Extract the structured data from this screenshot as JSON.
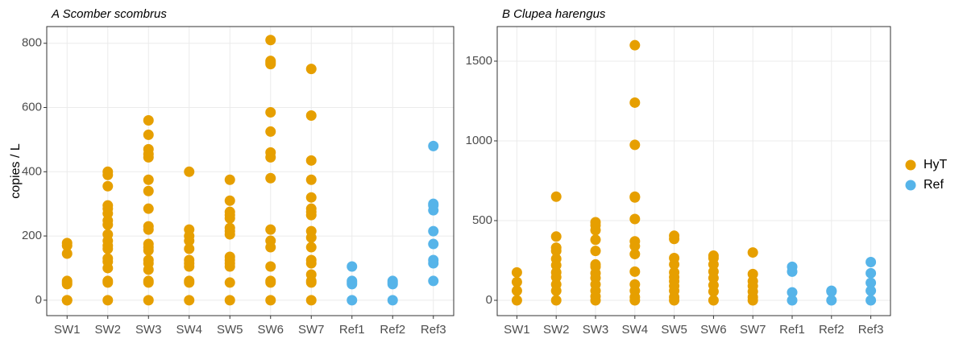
{
  "chart_data": [
    {
      "type": "strip",
      "title": "A Scomber scombrus",
      "ylabel": "copies / L",
      "categories": [
        "SW1",
        "SW2",
        "SW3",
        "SW4",
        "SW5",
        "SW6",
        "SW7",
        "Ref1",
        "Ref2",
        "Ref3"
      ],
      "ylim": [
        -48,
        852
      ],
      "yticks": [
        0,
        200,
        400,
        600,
        800
      ],
      "grid": true,
      "series": [
        {
          "name": "HyT",
          "color": "#E69F00",
          "values": [
            [
              0,
              0,
              50,
              55,
              60,
              145,
              170,
              178
            ],
            [
              400,
              390,
              355,
              295,
              285,
              270,
              248,
              235,
              205,
              185,
              170,
              160,
              130,
              120,
              100,
              60,
              55,
              0
            ],
            [
              560,
              515,
              470,
              455,
              445,
              375,
              340,
              285,
              230,
              220,
              175,
              165,
              155,
              125,
              115,
              95,
              60,
              55,
              0
            ],
            [
              400,
              220,
              200,
              185,
              160,
              125,
              115,
              105,
              60,
              55,
              0
            ],
            [
              375,
              310,
              275,
              265,
              255,
              225,
              215,
              205,
              135,
              125,
              115,
              105,
              55,
              0
            ],
            [
              810,
              745,
              740,
              735,
              585,
              525,
              460,
              445,
              380,
              220,
              185,
              165,
              105,
              60,
              55,
              0
            ],
            [
              720,
              575,
              435,
              375,
              320,
              285,
              275,
              265,
              215,
              195,
              165,
              125,
              115,
              80,
              60,
              55,
              0
            ],
            [],
            [],
            []
          ]
        },
        {
          "name": "Ref",
          "color": "#56B4E9",
          "values": [
            [],
            [],
            [],
            [],
            [],
            [],
            [],
            [
              105,
              60,
              55,
              50,
              0
            ],
            [
              60,
              55,
              50,
              0
            ],
            [
              480,
              300,
              295,
              280,
              215,
              175,
              125,
              115,
              60
            ]
          ]
        }
      ]
    },
    {
      "type": "strip",
      "title": "B Clupea harengus",
      "categories": [
        "SW1",
        "SW2",
        "SW3",
        "SW4",
        "SW5",
        "SW6",
        "SW7",
        "Ref1",
        "Ref2",
        "Ref3"
      ],
      "ylim": [
        -96,
        1717
      ],
      "yticks": [
        0,
        500,
        1000,
        1500
      ],
      "grid": true,
      "series": [
        {
          "name": "HyT",
          "color": "#E69F00",
          "values": [
            [
              175,
              115,
              60,
              0
            ],
            [
              650,
              400,
              330,
              310,
              260,
              220,
              175,
              145,
              100,
              60,
              0
            ],
            [
              490,
              470,
              440,
              380,
              310,
              225,
              210,
              170,
              140,
              100,
              60,
              25,
              0
            ],
            [
              1600,
              1240,
              975,
              650,
              645,
              510,
              370,
              340,
              290,
              180,
              100,
              60,
              20,
              0
            ],
            [
              405,
              385,
              265,
              225,
              175,
              145,
              120,
              90,
              60,
              20,
              0
            ],
            [
              280,
              265,
              225,
              180,
              140,
              95,
              55,
              0
            ],
            [
              300,
              165,
              120,
              90,
              55,
              20,
              0
            ],
            [],
            [],
            []
          ]
        },
        {
          "name": "Ref",
          "color": "#56B4E9",
          "values": [
            [],
            [],
            [],
            [],
            [],
            [],
            [],
            [
              210,
              180,
              50,
              0
            ],
            [
              60,
              55,
              0
            ],
            [
              240,
              170,
              110,
              60,
              0
            ]
          ]
        }
      ]
    }
  ]
}
